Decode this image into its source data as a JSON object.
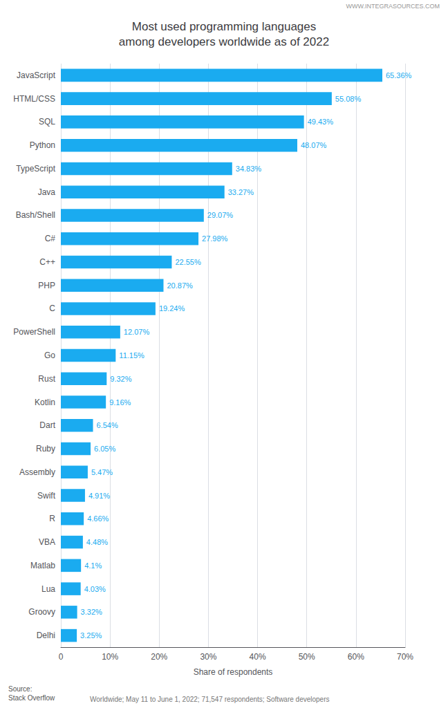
{
  "chart_data": {
    "type": "bar",
    "orientation": "horizontal",
    "title": "Most used programming languages\namong developers worldwide as of 2022",
    "annotations": [
      "WWW.INTEGRASOURCES.COM",
      "Source:\nStack Overflow",
      "Worldwide; May 11 to June 1, 2022; 71,547 respondents; Software developers"
    ],
    "categories": [
      "JavaScript",
      "HTML/CSS",
      "SQL",
      "Python",
      "TypeScript",
      "Java",
      "Bash/Shell",
      "C#",
      "C++",
      "PHP",
      "C",
      "PowerShell",
      "Go",
      "Rust",
      "Kotlin",
      "Dart",
      "Ruby",
      "Assembly",
      "Swift",
      "R",
      "VBA",
      "Matlab",
      "Lua",
      "Groovy",
      "Delhi"
    ],
    "values": [
      65.36,
      55.08,
      49.43,
      48.07,
      34.83,
      33.27,
      29.07,
      27.98,
      22.55,
      20.87,
      19.24,
      12.07,
      11.15,
      9.32,
      9.16,
      6.54,
      6.05,
      5.47,
      4.91,
      4.66,
      4.48,
      4.1,
      4.03,
      3.32,
      3.25
    ],
    "value_labels": [
      "65.36%",
      "55.08%",
      "49.43%",
      "48.07%",
      "34.83%",
      "33.27%",
      "29.07%",
      "27.98%",
      "22.55%",
      "20.87%",
      "19.24%",
      "12.07%",
      "11.15%",
      "9.32%",
      "9.16%",
      "6.54%",
      "6.05%",
      "5.47%",
      "4.91%",
      "4.66%",
      "4.48%",
      "4.1%",
      "4.03%",
      "3.32%",
      "3.25%"
    ],
    "data_labels": true,
    "color": "#1AABF0",
    "xlabel": "Share of respondents",
    "xlim": [
      0,
      70
    ],
    "xticks": [
      0,
      {
        "value": 10,
        "label": "10%"
      },
      {
        "value": 20,
        "label": "20%"
      },
      {
        "value": 30,
        "label": "30%"
      },
      {
        "value": 40,
        "label": "40%"
      },
      {
        "value": 50,
        "label": "50%"
      },
      {
        "value": 60,
        "label": "60%"
      },
      {
        "value": 70,
        "label": "70%"
      }
    ],
    "grid": true
  }
}
